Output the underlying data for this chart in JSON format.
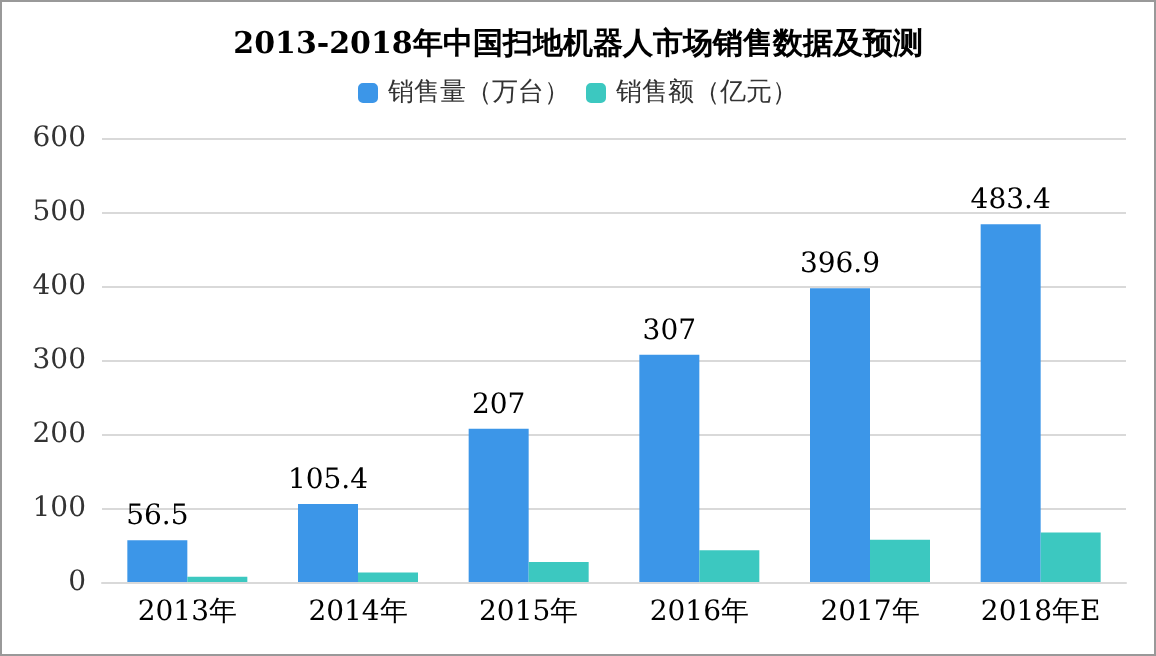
{
  "chart_data": {
    "type": "bar",
    "title": "2013-2018年中国扫地机器人市场销售数据及预测",
    "categories": [
      "2013年",
      "2014年",
      "2015年",
      "2016年",
      "2017年",
      "2018年E"
    ],
    "series": [
      {
        "name": "销售量（万台）",
        "color": "#3c96e8",
        "values": [
          56.5,
          105.4,
          207,
          307,
          396.9,
          483.4
        ],
        "value_labels": [
          "56.5",
          "105.4",
          "207",
          "307",
          "396.9",
          "483.4"
        ]
      },
      {
        "name": "销售额（亿元）",
        "color": "#3cc8c0",
        "values": [
          7,
          13,
          27,
          43,
          57,
          67
        ]
      }
    ],
    "ylim": [
      0,
      600
    ],
    "yticks": [
      0,
      100,
      200,
      300,
      400,
      500,
      600
    ],
    "grid": "y",
    "legend": "top"
  }
}
